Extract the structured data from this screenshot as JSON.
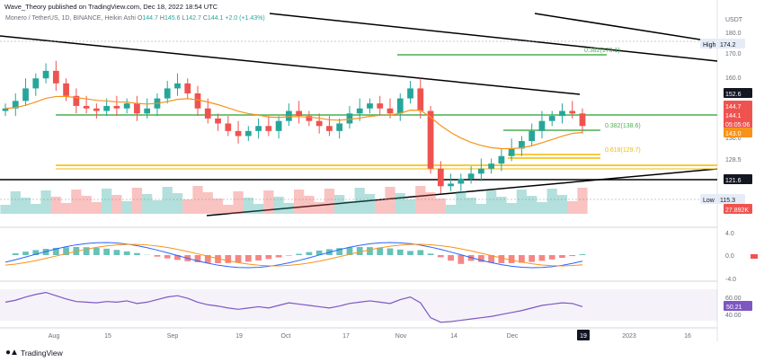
{
  "header": {
    "author_line": "Wave_Theory published on TradingView.com, Dec 18, 2022 18:54 UTC",
    "symbol_line": "Monero / TetherUS, 1D, BINANCE, Heikin Ashi",
    "ohlc": {
      "o_label": "O",
      "o": "144.7",
      "h_label": "H",
      "h": "145.6",
      "l_label": "L",
      "l": "142.7",
      "c_label": "C",
      "c": "144.1",
      "change": "+2.0 (+1.43%)"
    }
  },
  "branding": {
    "logo_text": "TradingView"
  },
  "colors": {
    "up": "#26a69a",
    "down": "#ef5350",
    "ema": "#f7931a",
    "fib_green": "#4caf50",
    "fib_orange": "#f5b800",
    "trend": "#000000",
    "rsi": "#7e57c2",
    "macd": "#2962ff"
  },
  "chart_data": [
    {
      "type": "candlestick",
      "title": "Monero / TetherUS, 1D, BINANCE, Heikin Ashi",
      "y_axis": {
        "unit_label": "USDT",
        "ticks": [
          "180.0",
          "170.0",
          "160.0",
          "136.0",
          "128.5",
          "121.6",
          "115.3"
        ]
      },
      "x_axis": {
        "ticks": [
          "Aug",
          "15",
          "Sep",
          "19",
          "Oct",
          "17",
          "Nov",
          "14",
          "Dec",
          "19",
          "2023",
          "16"
        ]
      },
      "price_labels": [
        {
          "label": "High",
          "value": "174.2"
        },
        {
          "label": "",
          "value": "152.6"
        },
        {
          "label": "",
          "value": "144.7"
        },
        {
          "label": "",
          "value": "144.1"
        },
        {
          "label": "",
          "value": "05:05:06"
        },
        {
          "label": "",
          "value": "143.0"
        },
        {
          "label": "",
          "value": "121.6"
        },
        {
          "label": "Low",
          "value": "115.3"
        },
        {
          "label": "",
          "value": "27.892K"
        }
      ],
      "fib_levels": [
        {
          "label": "0.382(170.1)",
          "value": 170.1
        },
        {
          "label": "0.382(138.6)",
          "value": 138.6
        },
        {
          "label": "0.618(129.7)",
          "value": 129.7
        }
      ],
      "series": [
        {
          "values": [
            150,
            153,
            158,
            162,
            165,
            160,
            155,
            151,
            150,
            149,
            151,
            150,
            152,
            148,
            150,
            154,
            158,
            160,
            156,
            150,
            146,
            144,
            141,
            139,
            141,
            143,
            141,
            145,
            149,
            147,
            145,
            143,
            141,
            144,
            148,
            150,
            152,
            150,
            148,
            154,
            158,
            149,
            126,
            119,
            120,
            122,
            124,
            126,
            128,
            131,
            134,
            137,
            141,
            145,
            147,
            149,
            148,
            143
          ]
        }
      ]
    },
    {
      "type": "bar",
      "name": "Volume",
      "last_value": "27.892K"
    },
    {
      "type": "line",
      "name": "MACD",
      "y_ticks": [
        "4.0",
        "0.0",
        "-4.0"
      ]
    },
    {
      "type": "line",
      "name": "RSI",
      "y_ticks": [
        "60.00",
        "40.00"
      ],
      "last_value": "50.21"
    }
  ]
}
